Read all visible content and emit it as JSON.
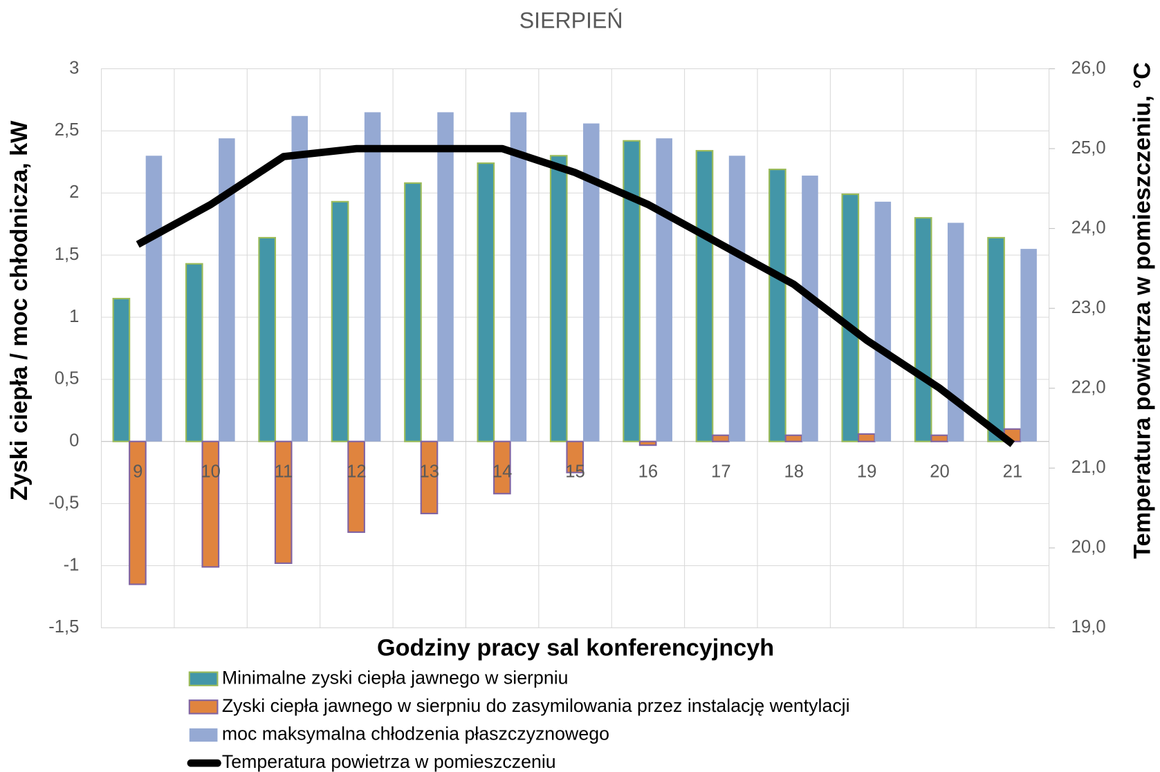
{
  "chart_data": {
    "type": "bar",
    "title": "SIERPIEŃ",
    "x_label": "Godziny pracy sal konferencyjncyh",
    "y_label": "Zyski ciepła / moc chłodnicza, kW",
    "y2_label": "Temperatura powietrza w pomieszczeniu, °C",
    "categories": [
      "9",
      "10",
      "11",
      "12",
      "13",
      "14",
      "15",
      "16",
      "17",
      "18",
      "19",
      "20",
      "21"
    ],
    "ylim": [
      -1.5,
      3
    ],
    "yticks": [
      {
        "value": -1.5,
        "label": "-1,5"
      },
      -1,
      {
        "value": -0.5,
        "label": "-0,5"
      },
      0,
      {
        "value": 0.5,
        "label": "0,5"
      },
      1,
      {
        "value": 1.5,
        "label": "1,5"
      },
      2,
      {
        "value": 2.5,
        "label": "2,5"
      },
      3
    ],
    "y2lim": [
      19,
      26
    ],
    "y2ticks": [
      {
        "value": 19,
        "label": "19,0"
      },
      {
        "value": 20,
        "label": "20,0"
      },
      {
        "value": 21,
        "label": "21,0"
      },
      {
        "value": 22,
        "label": "22,0"
      },
      {
        "value": 23,
        "label": "23,0"
      },
      {
        "value": 24,
        "label": "24,0"
      },
      {
        "value": 25,
        "label": "25,0"
      },
      {
        "value": 26,
        "label": "26,0"
      }
    ],
    "grid": true,
    "legend": "bottom",
    "series": [
      {
        "name": "Minimalne zyski ciepła jawnego w sierpniu",
        "type": "bar",
        "color": "#4396a8",
        "edge": "#9bbb59",
        "values": [
          1.15,
          1.43,
          1.64,
          1.93,
          2.08,
          2.24,
          2.3,
          2.42,
          2.34,
          2.19,
          1.99,
          1.8,
          1.64
        ]
      },
      {
        "name": "Zyski ciepła jawnego w sierpniu do zasymilowania przez instalację wentylacji",
        "type": "bar",
        "color": "#e0843e",
        "edge": "#8064a2",
        "values": [
          -1.15,
          -1.01,
          -0.98,
          -0.73,
          -0.58,
          -0.42,
          -0.25,
          -0.03,
          0.05,
          0.05,
          0.06,
          0.05,
          0.1
        ]
      },
      {
        "name": "moc maksymalna chłodzenia płaszczyznowego",
        "type": "bar",
        "color": "#95a9d3",
        "values": [
          2.3,
          2.44,
          2.62,
          2.65,
          2.65,
          2.65,
          2.56,
          2.44,
          2.3,
          2.14,
          1.93,
          1.76,
          1.55
        ]
      },
      {
        "name": "Temperatura powietrza w pomieszczeniu",
        "type": "line",
        "color": "#000000",
        "axis": "y2",
        "values": [
          23.8,
          24.3,
          24.9,
          25.0,
          25.0,
          25.0,
          24.7,
          24.3,
          23.8,
          23.3,
          22.6,
          22.0,
          21.3
        ]
      }
    ]
  }
}
